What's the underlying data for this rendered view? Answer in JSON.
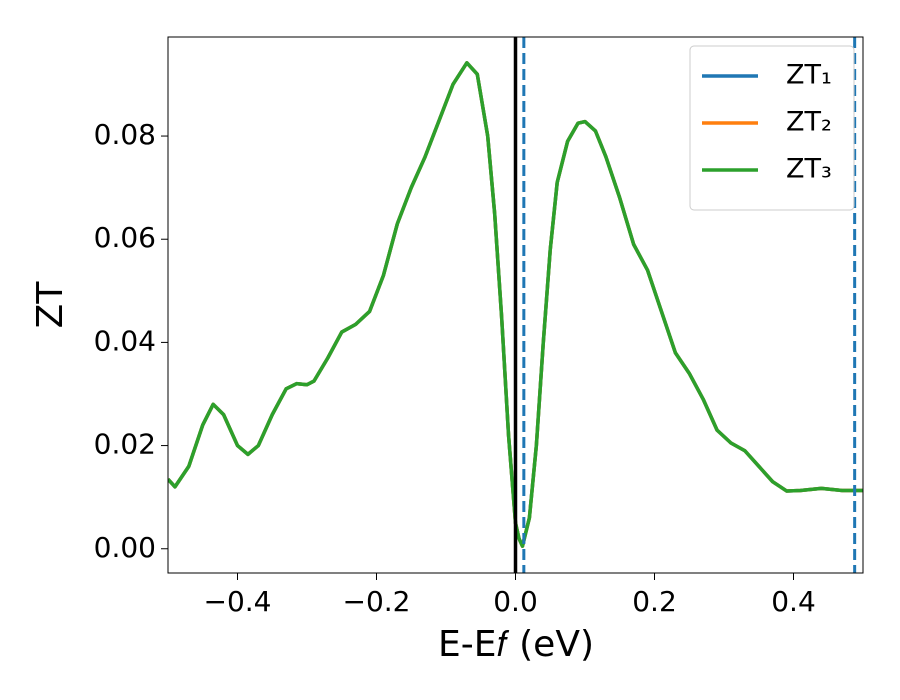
{
  "chart_data": {
    "type": "line",
    "xlabel": "E-E𝑓 (eV)",
    "ylabel": "ZT",
    "xlim": [
      -0.5,
      0.5
    ],
    "ylim": [
      -0.0047,
      0.0992
    ],
    "xticks": [
      {
        "value": -0.4,
        "label": "−0.4"
      },
      {
        "value": -0.2,
        "label": "−0.2"
      },
      {
        "value": 0,
        "label": "0.0"
      },
      {
        "value": 0.2,
        "label": "0.2"
      },
      {
        "value": 0.4,
        "label": "0.4"
      }
    ],
    "yticks": [
      {
        "value": 0,
        "label": "0.00"
      },
      {
        "value": 0.02,
        "label": "0.02"
      },
      {
        "value": 0.04,
        "label": "0.04"
      },
      {
        "value": 0.06,
        "label": "0.06"
      },
      {
        "value": 0.08,
        "label": "0.08"
      }
    ],
    "legend": "upper right",
    "x": [
      -0.5,
      -0.49,
      -0.47,
      -0.45,
      -0.435,
      -0.42,
      -0.4,
      -0.385,
      -0.37,
      -0.35,
      -0.33,
      -0.315,
      -0.3,
      -0.29,
      -0.27,
      -0.25,
      -0.23,
      -0.21,
      -0.19,
      -0.17,
      -0.15,
      -0.13,
      -0.11,
      -0.09,
      -0.07,
      -0.055,
      -0.04,
      -0.03,
      -0.02,
      -0.01,
      0,
      0.005,
      0.01,
      0.02,
      0.03,
      0.04,
      0.05,
      0.06,
      0.075,
      0.09,
      0.1,
      0.115,
      0.13,
      0.15,
      0.17,
      0.19,
      0.21,
      0.23,
      0.25,
      0.27,
      0.29,
      0.31,
      0.33,
      0.35,
      0.37,
      0.39,
      0.41,
      0.44,
      0.47,
      0.5
    ],
    "series": [
      {
        "name": "ZT₁",
        "color": "#1f77b4",
        "values": [
          0.0135,
          0.012,
          0.016,
          0.024,
          0.028,
          0.026,
          0.02,
          0.0183,
          0.02,
          0.026,
          0.031,
          0.032,
          0.0318,
          0.0325,
          0.037,
          0.042,
          0.0435,
          0.046,
          0.053,
          0.063,
          0.07,
          0.076,
          0.083,
          0.09,
          0.0942,
          0.092,
          0.08,
          0.065,
          0.045,
          0.022,
          0.005,
          0.002,
          0.0005,
          0.006,
          0.02,
          0.04,
          0.058,
          0.071,
          0.079,
          0.0825,
          0.0828,
          0.081,
          0.076,
          0.068,
          0.059,
          0.054,
          0.046,
          0.038,
          0.034,
          0.029,
          0.023,
          0.0205,
          0.019,
          0.016,
          0.013,
          0.0112,
          0.0113,
          0.0117,
          0.0113,
          0.0113
        ]
      },
      {
        "name": "ZT₂",
        "color": "#ff7f0e",
        "values": [
          0.0135,
          0.012,
          0.016,
          0.024,
          0.028,
          0.026,
          0.02,
          0.0183,
          0.02,
          0.026,
          0.031,
          0.032,
          0.0318,
          0.0325,
          0.037,
          0.042,
          0.0435,
          0.046,
          0.053,
          0.063,
          0.07,
          0.076,
          0.083,
          0.09,
          0.0942,
          0.092,
          0.08,
          0.065,
          0.045,
          0.022,
          0.005,
          0.002,
          0.0005,
          0.006,
          0.02,
          0.04,
          0.058,
          0.071,
          0.079,
          0.0825,
          0.0828,
          0.081,
          0.076,
          0.068,
          0.059,
          0.054,
          0.046,
          0.038,
          0.034,
          0.029,
          0.023,
          0.0205,
          0.019,
          0.016,
          0.013,
          0.0112,
          0.0113,
          0.0117,
          0.0113,
          0.0113
        ]
      },
      {
        "name": "ZT₃",
        "color": "#2ca02c",
        "values": [
          0.0135,
          0.012,
          0.016,
          0.024,
          0.028,
          0.026,
          0.02,
          0.0183,
          0.02,
          0.026,
          0.031,
          0.032,
          0.0318,
          0.0325,
          0.037,
          0.042,
          0.0435,
          0.046,
          0.053,
          0.063,
          0.07,
          0.076,
          0.083,
          0.09,
          0.0942,
          0.092,
          0.08,
          0.065,
          0.045,
          0.022,
          0.005,
          0.002,
          0.0005,
          0.006,
          0.02,
          0.04,
          0.058,
          0.071,
          0.079,
          0.0825,
          0.0828,
          0.081,
          0.076,
          0.068,
          0.059,
          0.054,
          0.046,
          0.038,
          0.034,
          0.029,
          0.023,
          0.0205,
          0.019,
          0.016,
          0.013,
          0.0112,
          0.0113,
          0.0117,
          0.0113,
          0.0113
        ]
      }
    ],
    "vlines": [
      {
        "x": 0,
        "color": "#000000",
        "style": "solid"
      },
      {
        "x": 0.012,
        "color": "#1f77b4",
        "style": "dashed"
      },
      {
        "x": 0.488,
        "color": "#1f77b4",
        "style": "dashed"
      }
    ]
  }
}
